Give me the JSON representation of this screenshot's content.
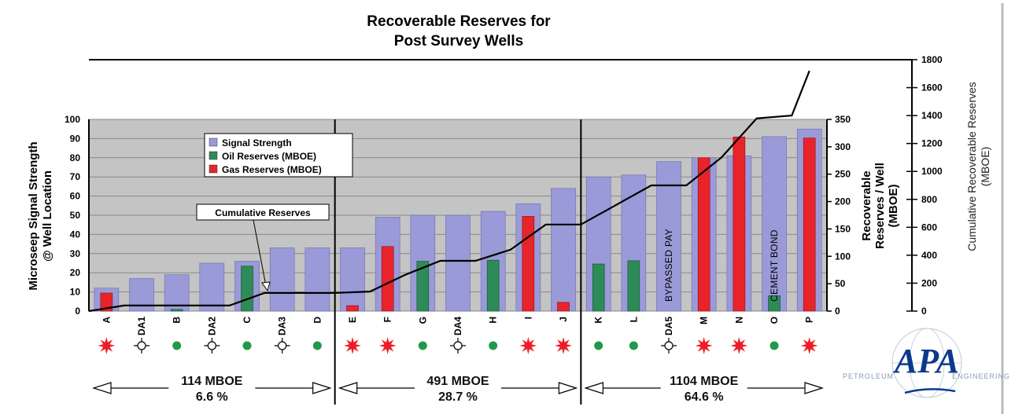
{
  "chart_data": {
    "type": "bar",
    "title_line1": "Recoverable Reserves for",
    "title_line2": "Post Survey Wells",
    "left_axis": {
      "label_line1": "Microseep Signal Strength",
      "label_line2": "@ Well Location",
      "ylim": [
        0,
        100
      ],
      "ticks": [
        "0",
        "10",
        "20",
        "30",
        "40",
        "50",
        "60",
        "70",
        "80",
        "90",
        "100"
      ]
    },
    "right_axis": {
      "label_line1": "Recoverable",
      "label_line2": "Reserves / Well",
      "label_line3": "(MBOE)",
      "ylim": [
        0,
        350
      ],
      "ticks": [
        "0",
        "50",
        "100",
        "150",
        "200",
        "250",
        "300",
        "350"
      ]
    },
    "cumulative_axis": {
      "label_line1": "Cumulative Recoverable Reserves",
      "label_line2": "(MBOE)",
      "ylim": [
        0,
        1800
      ],
      "ticks": [
        "0",
        "200",
        "400",
        "600",
        "800",
        "1000",
        "1200",
        "1400",
        "1600",
        "1800"
      ]
    },
    "categories": [
      "A",
      "DA1",
      "B",
      "DA2",
      "C",
      "DA3",
      "D",
      "E",
      "F",
      "G",
      "DA4",
      "H",
      "I",
      "J",
      "K",
      "L",
      "DA5",
      "M",
      "N",
      "O",
      "P"
    ],
    "series": [
      {
        "name": "Signal Strength",
        "color": "#9a9ad8",
        "values": [
          12,
          17,
          19,
          25,
          26,
          33,
          33,
          33,
          49,
          50,
          50,
          52,
          56,
          64,
          70,
          71,
          78,
          80,
          81,
          91,
          95
        ]
      },
      {
        "name": "Oil Reserves (MBOE)",
        "color": "#2e8b57",
        "values": [
          0,
          0,
          3,
          0,
          82,
          0,
          0,
          0,
          0,
          91,
          0,
          93,
          0,
          0,
          86,
          92,
          0,
          0,
          0,
          28,
          0
        ]
      },
      {
        "name": "Gas Reserves (MBOE)",
        "color": "#e8242a",
        "values": [
          33,
          0,
          0,
          0,
          0,
          0,
          0,
          10,
          118,
          0,
          0,
          0,
          173,
          16,
          0,
          0,
          0,
          280,
          318,
          0,
          316
        ]
      }
    ],
    "cumulative": {
      "name": "Cumulative Reserves",
      "color": "#000000",
      "values": [
        0,
        40,
        40,
        40,
        40,
        130,
        130,
        130,
        140,
        260,
        360,
        360,
        440,
        620,
        620,
        760,
        900,
        900,
        1100,
        1380,
        1400,
        1720
      ]
    },
    "well_symbols": [
      "gas",
      "dry",
      "oil",
      "dry",
      "oil",
      "dry",
      "oil",
      "gas",
      "gas",
      "oil",
      "dry",
      "oil",
      "gas",
      "gas",
      "oil",
      "oil",
      "dry",
      "gas",
      "gas",
      "oil",
      "gas"
    ],
    "in_bar_labels": [
      {
        "category": "DA5",
        "text": "BYPASSED PAY"
      },
      {
        "category": "O",
        "text": "CEMENT BOND"
      }
    ],
    "groups": [
      {
        "total": "114 MBOE",
        "pct": "6.6 %"
      },
      {
        "total": "491 MBOE",
        "pct": "28.7 %"
      },
      {
        "total": "1104 MBOE",
        "pct": "64.6 %"
      }
    ],
    "annotation": "Cumulative Reserves",
    "legend_position": "top-left",
    "grid": true
  },
  "logo": {
    "letters": "APA",
    "word_left": "PETROLEUM",
    "word_right": "ENGINEERING",
    "color": "#0a3a8c"
  }
}
